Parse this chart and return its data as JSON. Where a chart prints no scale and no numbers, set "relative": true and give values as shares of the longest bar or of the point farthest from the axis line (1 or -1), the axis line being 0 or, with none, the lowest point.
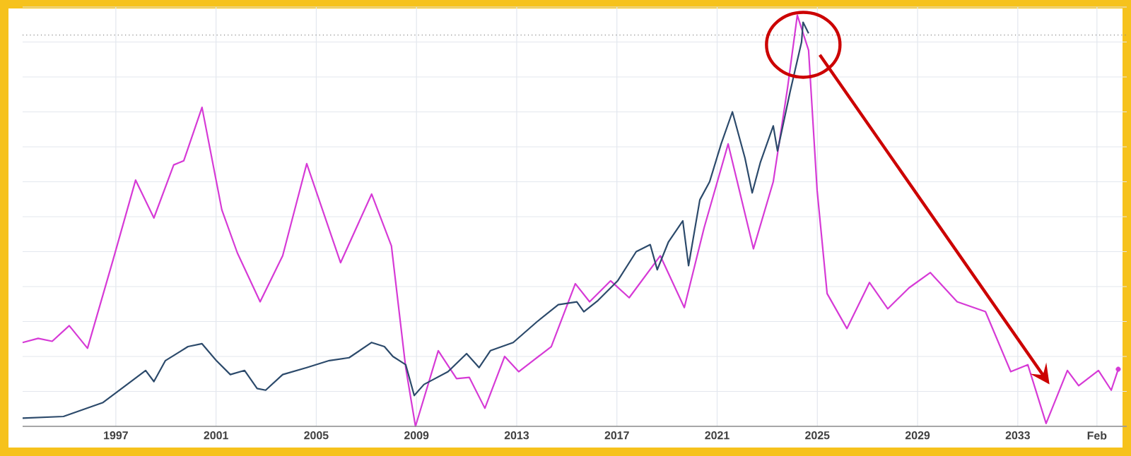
{
  "chart_data": {
    "type": "line",
    "relative": true,
    "grid": true,
    "line_style": "solid",
    "xlim": [
      1993.28,
      2037.35
    ],
    "xticks": [
      1997,
      2001,
      2005,
      2009,
      2013,
      2017,
      2021,
      2025,
      2029,
      2033,
      {
        "value": 2036.16,
        "label": "Feb"
      }
    ],
    "ref_lines": [
      {
        "axis": "y",
        "value": 0.952,
        "color": "#888888",
        "line_style": "dotted"
      }
    ],
    "series": [
      {
        "color": "#d63ad6",
        "x": [
          1993.28,
          1993.9,
          1994.46,
          1995.14,
          1995.87,
          1996.89,
          1997.79,
          1998.52,
          1999.31,
          1999.71,
          2000.44,
          2001.23,
          2001.85,
          2002.76,
          2003.66,
          2004.62,
          2005.97,
          2007.21,
          2008.0,
          2008.57,
          2008.96,
          2009.87,
          2010.6,
          2011.11,
          2011.73,
          2012.52,
          2013.08,
          2014.38,
          2015.34,
          2015.91,
          2016.75,
          2017.49,
          2018.73,
          2019.69,
          2020.48,
          2021.44,
          2022.45,
          2023.24,
          2023.81,
          2024.2,
          2024.65,
          2024.99,
          2025.39,
          2026.18,
          2027.08,
          2027.81,
          2028.66,
          2029.51,
          2030.58,
          2031.71,
          2032.72,
          2033.4,
          2034.13,
          2034.98,
          2035.43,
          2036.22,
          2036.73,
          2037.01
        ],
        "values": [
          0.204,
          0.214,
          0.207,
          0.245,
          0.19,
          0.405,
          0.599,
          0.507,
          0.636,
          0.646,
          0.776,
          0.527,
          0.422,
          0.303,
          0.415,
          0.639,
          0.398,
          0.565,
          0.439,
          0.143,
          0.0,
          0.184,
          0.116,
          0.119,
          0.044,
          0.17,
          0.133,
          0.194,
          0.347,
          0.303,
          0.354,
          0.313,
          0.415,
          0.289,
          0.483,
          0.687,
          0.432,
          0.595,
          0.823,
          1.0,
          0.915,
          0.575,
          0.323,
          0.238,
          0.35,
          0.286,
          0.337,
          0.374,
          0.303,
          0.279,
          0.133,
          0.15,
          0.007,
          0.136,
          0.099,
          0.136,
          0.088,
          0.139
        ]
      },
      {
        "color": "#2c4a6b",
        "x": [
          1993.28,
          1994.91,
          1996.49,
          1997.45,
          1998.19,
          1998.52,
          1998.98,
          1999.88,
          2000.44,
          2001.01,
          2001.57,
          2002.14,
          2002.64,
          2002.98,
          2003.66,
          2004.62,
          2005.52,
          2006.31,
          2007.21,
          2007.72,
          2008.06,
          2008.57,
          2008.91,
          2009.3,
          2010.26,
          2011.0,
          2011.5,
          2011.95,
          2012.86,
          2013.82,
          2014.66,
          2015.4,
          2015.68,
          2016.24,
          2017.03,
          2017.77,
          2018.33,
          2018.61,
          2019.06,
          2019.63,
          2019.86,
          2020.31,
          2020.7,
          2021.16,
          2021.61,
          2022.11,
          2022.4,
          2022.73,
          2023.24,
          2023.41,
          2023.92,
          2024.37,
          2024.43,
          2024.65
        ],
        "values": [
          0.02,
          0.024,
          0.058,
          0.102,
          0.136,
          0.109,
          0.16,
          0.194,
          0.201,
          0.16,
          0.126,
          0.136,
          0.092,
          0.088,
          0.126,
          0.143,
          0.16,
          0.167,
          0.204,
          0.194,
          0.17,
          0.15,
          0.075,
          0.102,
          0.133,
          0.177,
          0.143,
          0.184,
          0.204,
          0.255,
          0.296,
          0.303,
          0.279,
          0.306,
          0.354,
          0.425,
          0.442,
          0.381,
          0.449,
          0.5,
          0.391,
          0.551,
          0.595,
          0.687,
          0.765,
          0.653,
          0.568,
          0.643,
          0.731,
          0.67,
          0.816,
          0.935,
          0.983,
          0.956
        ]
      }
    ]
  }
}
